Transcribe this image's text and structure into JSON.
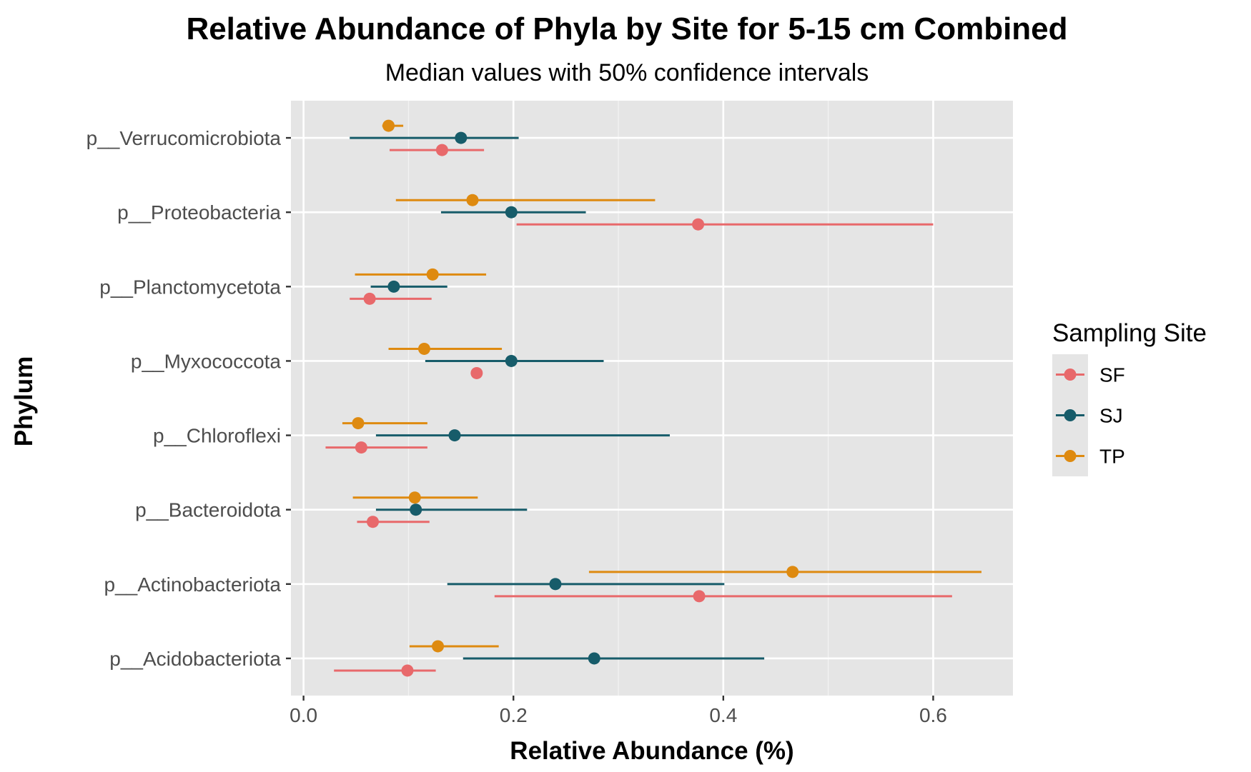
{
  "chart_data": {
    "type": "dot-interval",
    "title": "Relative Abundance of Phyla by Site for 5-15 cm Combined",
    "subtitle": "Median values with 50% confidence intervals",
    "xlabel": "Relative Abundance (%)",
    "ylabel": "Phylum",
    "xlim": [
      -0.012,
      0.676
    ],
    "x_ticks": [
      0.0,
      0.2,
      0.4,
      0.6
    ],
    "x_tick_labels": [
      "0.0",
      "0.2",
      "0.4",
      "0.6"
    ],
    "categories": [
      "p__Acidobacteriota",
      "p__Actinobacteriota",
      "p__Bacteroidota",
      "p__Chloroflexi",
      "p__Myxococcota",
      "p__Planctomycetota",
      "p__Proteobacteria",
      "p__Verrucomicrobiota"
    ],
    "legend": {
      "title": "Sampling Site",
      "position": "right"
    },
    "grid": true,
    "series": [
      {
        "name": "SF",
        "color": "#e8696b",
        "points": [
          {
            "category": "p__Acidobacteriota",
            "median": 0.099,
            "low": 0.029,
            "high": 0.126
          },
          {
            "category": "p__Actinobacteriota",
            "median": 0.377,
            "low": 0.182,
            "high": 0.618
          },
          {
            "category": "p__Bacteroidota",
            "median": 0.066,
            "low": 0.051,
            "high": 0.12
          },
          {
            "category": "p__Chloroflexi",
            "median": 0.055,
            "low": 0.021,
            "high": 0.118
          },
          {
            "category": "p__Myxococcota",
            "median": 0.165,
            "low": null,
            "high": null
          },
          {
            "category": "p__Planctomycetota",
            "median": 0.063,
            "low": 0.044,
            "high": 0.122
          },
          {
            "category": "p__Proteobacteria",
            "median": 0.376,
            "low": 0.203,
            "high": 0.6
          },
          {
            "category": "p__Verrucomicrobiota",
            "median": 0.132,
            "low": 0.082,
            "high": 0.172
          }
        ]
      },
      {
        "name": "SJ",
        "color": "#175c6a",
        "points": [
          {
            "category": "p__Acidobacteriota",
            "median": 0.277,
            "low": 0.152,
            "high": 0.439
          },
          {
            "category": "p__Actinobacteriota",
            "median": 0.24,
            "low": 0.137,
            "high": 0.401
          },
          {
            "category": "p__Bacteroidota",
            "median": 0.107,
            "low": 0.069,
            "high": 0.213
          },
          {
            "category": "p__Chloroflexi",
            "median": 0.144,
            "low": 0.069,
            "high": 0.349
          },
          {
            "category": "p__Myxococcota",
            "median": 0.198,
            "low": 0.116,
            "high": 0.286
          },
          {
            "category": "p__Planctomycetota",
            "median": 0.086,
            "low": 0.064,
            "high": 0.137
          },
          {
            "category": "p__Proteobacteria",
            "median": 0.198,
            "low": 0.131,
            "high": 0.269
          },
          {
            "category": "p__Verrucomicrobiota",
            "median": 0.15,
            "low": 0.044,
            "high": 0.205
          }
        ]
      },
      {
        "name": "TP",
        "color": "#de8a10",
        "points": [
          {
            "category": "p__Acidobacteriota",
            "median": 0.128,
            "low": 0.101,
            "high": 0.186
          },
          {
            "category": "p__Actinobacteriota",
            "median": 0.466,
            "low": 0.272,
            "high": 0.646
          },
          {
            "category": "p__Bacteroidota",
            "median": 0.106,
            "low": 0.047,
            "high": 0.166
          },
          {
            "category": "p__Chloroflexi",
            "median": 0.052,
            "low": 0.037,
            "high": 0.118
          },
          {
            "category": "p__Myxococcota",
            "median": 0.115,
            "low": 0.081,
            "high": 0.189
          },
          {
            "category": "p__Planctomycetota",
            "median": 0.123,
            "low": 0.049,
            "high": 0.174
          },
          {
            "category": "p__Proteobacteria",
            "median": 0.161,
            "low": 0.088,
            "high": 0.335
          },
          {
            "category": "p__Verrucomicrobiota",
            "median": 0.081,
            "low": 0.075,
            "high": 0.095
          }
        ]
      }
    ]
  }
}
